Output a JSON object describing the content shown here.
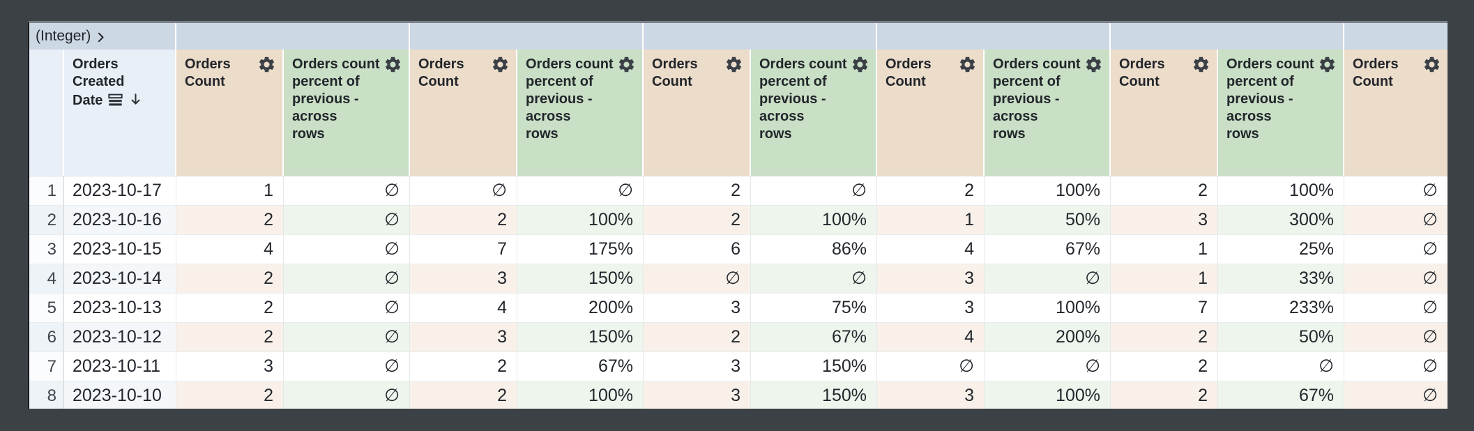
{
  "pivot_band": {
    "label": "(Integer)",
    "chevron_icon": "chevron-right",
    "group_count": 5
  },
  "header": {
    "date_label": "Orders Created Date",
    "date_lines": [
      "Orders",
      "Created",
      "Date"
    ],
    "date_icons": [
      "rows-list-icon",
      "sort-descending-arrow-icon"
    ],
    "count_label": "Orders Count",
    "pct_label": "Orders count percent of previous - across rows",
    "gear_icon": "gear-icon",
    "measures": [
      {
        "type": "count",
        "label": "Orders Count",
        "lines": [
          "Orders",
          "Count"
        ]
      },
      {
        "type": "pct",
        "label": "Orders count percent of previous - across rows",
        "lines": [
          "Orders count",
          "percent of",
          "previous -",
          "across",
          "rows"
        ]
      },
      {
        "type": "count",
        "label": "Orders Count",
        "lines": [
          "Orders",
          "Count"
        ]
      },
      {
        "type": "pct",
        "label": "Orders count percent of previous - across rows",
        "lines": [
          "Orders count",
          "percent of",
          "previous -",
          "across",
          "rows"
        ]
      },
      {
        "type": "count",
        "label": "Orders Count",
        "lines": [
          "Orders",
          "Count"
        ]
      },
      {
        "type": "pct",
        "label": "Orders count percent of previous - across rows",
        "lines": [
          "Orders count",
          "percent of",
          "previous -",
          "across",
          "rows"
        ]
      },
      {
        "type": "count",
        "label": "Orders Count",
        "lines": [
          "Orders",
          "Count"
        ]
      },
      {
        "type": "pct",
        "label": "Orders count percent of previous - across rows",
        "lines": [
          "Orders count",
          "percent of",
          "previous -",
          "across",
          "rows"
        ]
      },
      {
        "type": "count",
        "label": "Orders Count",
        "lines": [
          "Orders",
          "Count"
        ]
      },
      {
        "type": "pct",
        "label": "Orders count percent of previous - across rows",
        "lines": [
          "Orders count",
          "percent of",
          "previous -",
          "across",
          "rows"
        ]
      },
      {
        "type": "count",
        "label": "Orders Count",
        "lines": [
          "Orders",
          "Count"
        ]
      }
    ]
  },
  "null_symbol": "∅",
  "rows": [
    {
      "num": "1",
      "date": "2023-10-17",
      "values": [
        "1",
        "∅",
        "∅",
        "∅",
        "2",
        "∅",
        "2",
        "100%",
        "2",
        "100%",
        "∅"
      ]
    },
    {
      "num": "2",
      "date": "2023-10-16",
      "values": [
        "2",
        "∅",
        "2",
        "100%",
        "2",
        "100%",
        "1",
        "50%",
        "3",
        "300%",
        "∅"
      ]
    },
    {
      "num": "3",
      "date": "2023-10-15",
      "values": [
        "4",
        "∅",
        "7",
        "175%",
        "6",
        "86%",
        "4",
        "67%",
        "1",
        "25%",
        "∅"
      ]
    },
    {
      "num": "4",
      "date": "2023-10-14",
      "values": [
        "2",
        "∅",
        "3",
        "150%",
        "∅",
        "∅",
        "3",
        "∅",
        "1",
        "33%",
        "∅"
      ]
    },
    {
      "num": "5",
      "date": "2023-10-13",
      "values": [
        "2",
        "∅",
        "4",
        "200%",
        "3",
        "75%",
        "3",
        "100%",
        "7",
        "233%",
        "∅"
      ]
    },
    {
      "num": "6",
      "date": "2023-10-12",
      "values": [
        "2",
        "∅",
        "3",
        "150%",
        "2",
        "67%",
        "4",
        "200%",
        "2",
        "50%",
        "∅"
      ]
    },
    {
      "num": "7",
      "date": "2023-10-11",
      "values": [
        "3",
        "∅",
        "2",
        "67%",
        "3",
        "150%",
        "∅",
        "∅",
        "2",
        "∅",
        "∅"
      ]
    },
    {
      "num": "8",
      "date": "2023-10-10",
      "values": [
        "2",
        "∅",
        "2",
        "100%",
        "3",
        "150%",
        "3",
        "100%",
        "2",
        "67%",
        "∅"
      ]
    }
  ],
  "colors": {
    "surround": "#3c4145",
    "pivot_band_bg": "#cdd8e5",
    "dimension_header_bg": "#e9eff6",
    "count_header_bg": "#ecdcca",
    "percent_header_bg": "#c9dfc6",
    "alt_row_dimension_bg": "#f3f7fa",
    "alt_row_count_bg": "#f9f1e9",
    "alt_row_percent_bg": "#eef5ec",
    "text": "#23272d"
  }
}
